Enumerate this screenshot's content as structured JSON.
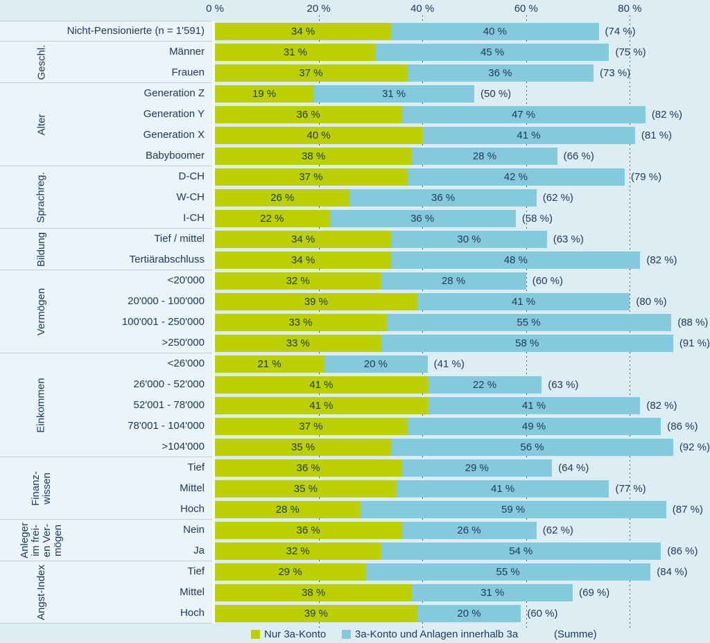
{
  "colors": {
    "background": "#dceef4",
    "panel_background": "#e9f3f8",
    "green": "#bccf00",
    "blue": "#85c9dc",
    "text": "#21395a",
    "gridline": "#4e5a60",
    "separator": "#c2ced4"
  },
  "chart_data": {
    "type": "bar",
    "subtype": "horizontal-stacked",
    "xlim": [
      0,
      95
    ],
    "grid": "dashed vertical lines at 20/40/60/80",
    "x_axis": {
      "tick_values": [
        0,
        20,
        40,
        60,
        80
      ],
      "tick_labels": [
        "0 %",
        "20 %",
        "40 %",
        "60 %",
        "80 %"
      ]
    },
    "legend": {
      "items": [
        {
          "label": "Nur 3a-Konto",
          "color": "#bccf00"
        },
        {
          "label": "3a-Konto und Anlagen innerhalb 3a",
          "color": "#85c9dc"
        }
      ],
      "summe_label": "(Summe)"
    },
    "groups": [
      {
        "label": "",
        "rows": [
          {
            "label": "Nicht-Pensionierte (n = 1'591)",
            "konto": 34,
            "anlagen": 40,
            "summe": 74
          }
        ]
      },
      {
        "label": "Geschl.",
        "rows": [
          {
            "label": "Männer",
            "konto": 31,
            "anlagen": 45,
            "summe": 75
          },
          {
            "label": "Frauen",
            "konto": 37,
            "anlagen": 36,
            "summe": 73
          }
        ]
      },
      {
        "label": "Alter",
        "rows": [
          {
            "label": "Generation Z",
            "konto": 19,
            "anlagen": 31,
            "summe": 50
          },
          {
            "label": "Generation Y",
            "konto": 36,
            "anlagen": 47,
            "summe": 82
          },
          {
            "label": "Generation X",
            "konto": 40,
            "anlagen": 41,
            "summe": 81
          },
          {
            "label": "Babyboomer",
            "konto": 38,
            "anlagen": 28,
            "summe": 66
          }
        ]
      },
      {
        "label": "Sprachreg.",
        "rows": [
          {
            "label": "D-CH",
            "konto": 37,
            "anlagen": 42,
            "summe": 79
          },
          {
            "label": "W-CH",
            "konto": 26,
            "anlagen": 36,
            "summe": 62
          },
          {
            "label": "I-CH",
            "konto": 22,
            "anlagen": 36,
            "summe": 58
          }
        ]
      },
      {
        "label": "Bildung",
        "rows": [
          {
            "label": "Tief / mittel",
            "konto": 34,
            "anlagen": 30,
            "summe": 63
          },
          {
            "label": "Tertiärabschluss",
            "konto": 34,
            "anlagen": 48,
            "summe": 82
          }
        ]
      },
      {
        "label": "Vermögen",
        "rows": [
          {
            "label": "<20'000",
            "konto": 32,
            "anlagen": 28,
            "summe": 60
          },
          {
            "label": "20'000 - 100'000",
            "konto": 39,
            "anlagen": 41,
            "summe": 80
          },
          {
            "label": "100'001 - 250'000",
            "konto": 33,
            "anlagen": 55,
            "summe": 88
          },
          {
            "label": ">250'000",
            "konto": 33,
            "anlagen": 58,
            "summe": 91
          }
        ]
      },
      {
        "label": "Einkommen",
        "rows": [
          {
            "label": "<26'000",
            "konto": 21,
            "anlagen": 20,
            "summe": 41
          },
          {
            "label": "26'000 - 52'000",
            "konto": 41,
            "anlagen": 22,
            "summe": 63
          },
          {
            "label": "52'001 - 78'000",
            "konto": 41,
            "anlagen": 41,
            "summe": 82
          },
          {
            "label": "78'001 - 104'000",
            "konto": 37,
            "anlagen": 49,
            "summe": 86
          },
          {
            "label": ">104'000",
            "konto": 35,
            "anlagen": 56,
            "summe": 92
          }
        ]
      },
      {
        "label": "Finanz-\nwissen",
        "rows": [
          {
            "label": "Tief",
            "konto": 36,
            "anlagen": 29,
            "summe": 64
          },
          {
            "label": "Mittel",
            "konto": 35,
            "anlagen": 41,
            "summe": 77
          },
          {
            "label": "Hoch",
            "konto": 28,
            "anlagen": 59,
            "summe": 87
          }
        ]
      },
      {
        "label": "Anleger\nim frei-\nen Ver-\nmögen",
        "rows": [
          {
            "label": "Nein",
            "konto": 36,
            "anlagen": 26,
            "summe": 62
          },
          {
            "label": "Ja",
            "konto": 32,
            "anlagen": 54,
            "summe": 86
          }
        ]
      },
      {
        "label": "Angst-Index",
        "rows": [
          {
            "label": "Tief",
            "konto": 29,
            "anlagen": 55,
            "summe": 84
          },
          {
            "label": "Mittel",
            "konto": 38,
            "anlagen": 31,
            "summe": 69
          },
          {
            "label": "Hoch",
            "konto": 39,
            "anlagen": 20,
            "summe": 60
          }
        ]
      }
    ]
  }
}
